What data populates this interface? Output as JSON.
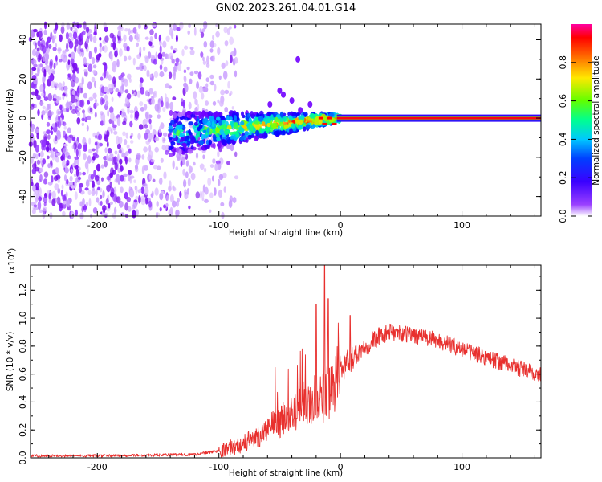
{
  "figure_title": "GN02.2023.261.04.01.G14",
  "chart_data": [
    {
      "type": "heatmap",
      "title": "GN02.2023.261.04.01.G14",
      "xlabel": "Height of straight line (km)",
      "ylabel": "Frequency (Hz)",
      "xlim": [
        -255,
        165
      ],
      "ylim": [
        -50,
        48
      ],
      "xticks": [
        -200,
        -100,
        0,
        100
      ],
      "yticks": [
        -40,
        -20,
        0,
        20,
        40
      ],
      "colorbar": {
        "label": "Normalized spectral amplitude",
        "range": [
          0,
          1
        ],
        "ticks": [
          0.0,
          0.2,
          0.4,
          0.6,
          0.8
        ],
        "colormap": [
          "#ffffff",
          "#7a00ff",
          "#0000ff",
          "#00c8ff",
          "#00ff90",
          "#80ff00",
          "#ffe000",
          "#ff6000",
          "#ff0000",
          "#ff00a0"
        ]
      },
      "features": {
        "noise_region_x": [
          -255,
          -100
        ],
        "transition_region_x": [
          -140,
          0
        ],
        "steady_tone_x": [
          0,
          165
        ],
        "steady_tone_frequency": 0,
        "steady_tone_amplitude": 0.9
      }
    },
    {
      "type": "line",
      "xlabel": "Height of straight line (km)",
      "ylabel": "SNR (10 * v/v)",
      "y_scale_label": "(x10",
      "y_scale_exp": "4",
      "y_units": "x10^4",
      "xlim": [
        -255,
        165
      ],
      "ylim": [
        0,
        1.38
      ],
      "xticks": [
        -200,
        -100,
        0,
        100
      ],
      "yticks": [
        0.0,
        0.2,
        0.4,
        0.6,
        0.8,
        1.0,
        1.2
      ],
      "line_color": "#e8302e",
      "envelope": {
        "x": [
          -255,
          -200,
          -150,
          -120,
          -100,
          -80,
          -60,
          -40,
          -30,
          -20,
          -10,
          0,
          10,
          20,
          30,
          40,
          60,
          80,
          100,
          120,
          140,
          165
        ],
        "y": [
          0.015,
          0.015,
          0.02,
          0.025,
          0.05,
          0.1,
          0.2,
          0.32,
          0.38,
          0.42,
          0.44,
          0.62,
          0.72,
          0.8,
          0.86,
          0.9,
          0.88,
          0.84,
          0.78,
          0.72,
          0.66,
          0.59
        ]
      },
      "spikes": [
        {
          "x": -20,
          "y": 1.1
        },
        {
          "x": -13,
          "y": 1.38
        },
        {
          "x": -10,
          "y": 1.14
        },
        {
          "x": 8,
          "y": 1.02
        }
      ]
    }
  ]
}
